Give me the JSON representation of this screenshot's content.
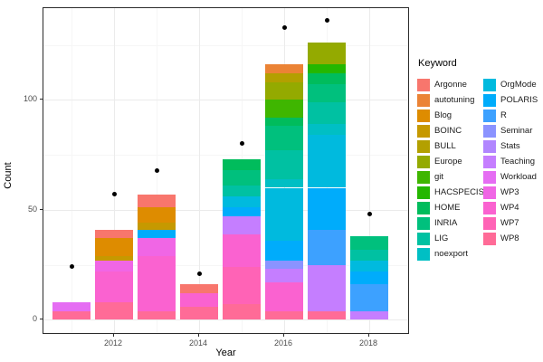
{
  "figure": {
    "ylabel": "Count",
    "xlabel": "Year",
    "legend_title": "Keyword"
  },
  "chart_data": {
    "type": "bar",
    "stacked": true,
    "title": "",
    "xlabel": "Year",
    "ylabel": "Count",
    "legend_title": "Keyword",
    "legend_position": "right",
    "grid": true,
    "background": "#ffffff",
    "panel_border_color": "#2b2b2b",
    "point_color": "#000000",
    "x_ticks": [
      "2012",
      "2014",
      "2016",
      "2018"
    ],
    "y_ticks": [
      0,
      50,
      100
    ],
    "y_minor_ticks": [
      25,
      75,
      125
    ],
    "ylim": [
      0,
      141
    ],
    "categories": [
      2011,
      2012,
      2013,
      2014,
      2015,
      2016,
      2017,
      2018
    ],
    "keywords_legend_order": [
      "Argonne",
      "autotuning",
      "Blog",
      "BOINC",
      "BULL",
      "Europe",
      "git",
      "HACSPECIS",
      "HOME",
      "INRIA",
      "LIG",
      "noexport",
      "OrgMode",
      "POLARIS",
      "R",
      "Seminar",
      "Stats",
      "Teaching",
      "Workload",
      "WP3",
      "WP4",
      "WP7",
      "WP8"
    ],
    "palette": {
      "Argonne": "#F8766D",
      "autotuning": "#EB8335",
      "Blog": "#DE8C00",
      "BOINC": "#C69900",
      "BULL": "#B3A000",
      "Europe": "#94AA00",
      "git": "#3FB600",
      "HACSPECIS": "#24B700",
      "HOME": "#00BC5C",
      "INRIA": "#00C07D",
      "LIG": "#00C1A2",
      "noexport": "#00BFC4",
      "OrgMode": "#00BADE",
      "POLARIS": "#00ACFB",
      "R": "#3DA1FF",
      "Seminar": "#8B93FF",
      "Stats": "#B186FF",
      "Teaching": "#C57EFF",
      "Workload": "#E56DF3",
      "WP3": "#F066E5",
      "WP4": "#FA62D0",
      "WP7": "#FF63B6",
      "WP8": "#FF6B97"
    },
    "bars": [
      {
        "year": 2011,
        "total": 8,
        "segments_top_to_bottom": [
          {
            "keyword": "Workload",
            "value": 4
          },
          {
            "keyword": "WP8",
            "value": 4
          }
        ]
      },
      {
        "year": 2012,
        "total": 41,
        "segments_top_to_bottom": [
          {
            "keyword": "Argonne",
            "value": 4
          },
          {
            "keyword": "Blog",
            "value": 8
          },
          {
            "keyword": "BOINC",
            "value": 2
          },
          {
            "keyword": "WP3",
            "value": 5
          },
          {
            "keyword": "WP4",
            "value": 14
          },
          {
            "keyword": "WP8",
            "value": 8
          }
        ]
      },
      {
        "year": 2013,
        "total": 57,
        "segments_top_to_bottom": [
          {
            "keyword": "Argonne",
            "value": 6
          },
          {
            "keyword": "Blog",
            "value": 7
          },
          {
            "keyword": "BOINC",
            "value": 3
          },
          {
            "keyword": "POLARIS",
            "value": 4
          },
          {
            "keyword": "WP3",
            "value": 8
          },
          {
            "keyword": "WP4",
            "value": 25
          },
          {
            "keyword": "WP8",
            "value": 4
          }
        ]
      },
      {
        "year": 2014,
        "total": 16,
        "segments_top_to_bottom": [
          {
            "keyword": "Argonne",
            "value": 4
          },
          {
            "keyword": "WP4",
            "value": 6
          },
          {
            "keyword": "WP8",
            "value": 6
          }
        ]
      },
      {
        "year": 2015,
        "total": 73,
        "segments_top_to_bottom": [
          {
            "keyword": "HOME",
            "value": 5
          },
          {
            "keyword": "INRIA",
            "value": 7
          },
          {
            "keyword": "LIG",
            "value": 5
          },
          {
            "keyword": "OrgMode",
            "value": 5
          },
          {
            "keyword": "POLARIS",
            "value": 4
          },
          {
            "keyword": "Teaching",
            "value": 8
          },
          {
            "keyword": "WP4",
            "value": 15
          },
          {
            "keyword": "WP7",
            "value": 17
          },
          {
            "keyword": "WP8",
            "value": 7
          }
        ]
      },
      {
        "year": 2016,
        "total": 116,
        "segments_top_to_bottom": [
          {
            "keyword": "autotuning",
            "value": 4
          },
          {
            "keyword": "BULL",
            "value": 4
          },
          {
            "keyword": "Europe",
            "value": 8
          },
          {
            "keyword": "git",
            "value": 8
          },
          {
            "keyword": "HOME",
            "value": 4
          },
          {
            "keyword": "INRIA",
            "value": 11
          },
          {
            "keyword": "LIG",
            "value": 13
          },
          {
            "keyword": "noexport",
            "value": 4
          },
          {
            "keyword": "OrgMode",
            "value": 24
          },
          {
            "keyword": "POLARIS",
            "value": 9
          },
          {
            "keyword": "Seminar",
            "value": 4
          },
          {
            "keyword": "Teaching",
            "value": 6
          },
          {
            "keyword": "WP4",
            "value": 13
          },
          {
            "keyword": "WP8",
            "value": 4
          }
        ]
      },
      {
        "year": 2017,
        "total": 126,
        "segments_top_to_bottom": [
          {
            "keyword": "Europe",
            "value": 10
          },
          {
            "keyword": "HACSPECIS",
            "value": 4
          },
          {
            "keyword": "HOME",
            "value": 5
          },
          {
            "keyword": "INRIA",
            "value": 8
          },
          {
            "keyword": "LIG",
            "value": 10
          },
          {
            "keyword": "noexport",
            "value": 5
          },
          {
            "keyword": "OrgMode",
            "value": 24
          },
          {
            "keyword": "POLARIS",
            "value": 19
          },
          {
            "keyword": "R",
            "value": 16
          },
          {
            "keyword": "Teaching",
            "value": 21
          },
          {
            "keyword": "WP8",
            "value": 4
          }
        ]
      },
      {
        "year": 2018,
        "total": 38,
        "segments_top_to_bottom": [
          {
            "keyword": "INRIA",
            "value": 6
          },
          {
            "keyword": "LIG",
            "value": 5
          },
          {
            "keyword": "OrgMode",
            "value": 5
          },
          {
            "keyword": "POLARIS",
            "value": 6
          },
          {
            "keyword": "R",
            "value": 12
          },
          {
            "keyword": "Teaching",
            "value": 4
          }
        ]
      }
    ],
    "points": [
      {
        "year": 2011,
        "value": 24
      },
      {
        "year": 2012,
        "value": 57
      },
      {
        "year": 2013,
        "value": 68
      },
      {
        "year": 2014,
        "value": 21
      },
      {
        "year": 2015,
        "value": 80
      },
      {
        "year": 2016,
        "value": 133
      },
      {
        "year": 2017,
        "value": 136
      },
      {
        "year": 2018,
        "value": 48
      }
    ]
  }
}
